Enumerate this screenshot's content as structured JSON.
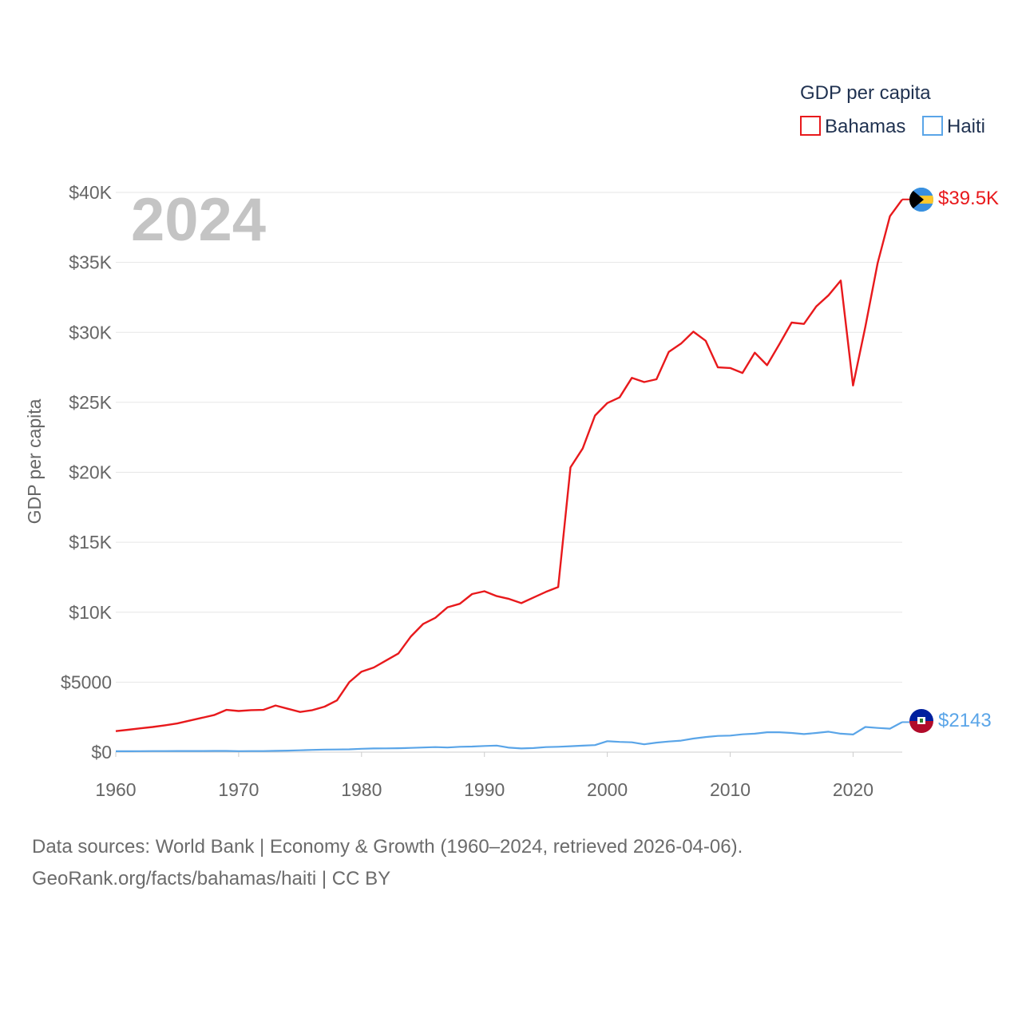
{
  "chart_data": {
    "type": "line",
    "title": "GDP per capita",
    "ylabel": "GDP per capita",
    "xlabel": "",
    "year_label": "2024",
    "xlim": [
      1960,
      2024
    ],
    "ylim": [
      0,
      40000
    ],
    "x_ticks": [
      "1960",
      "1970",
      "1980",
      "1990",
      "2000",
      "2010",
      "2020"
    ],
    "x_tick_values": [
      1960,
      1970,
      1980,
      1990,
      2000,
      2010,
      2020
    ],
    "y_ticks": [
      "$0",
      "$5000",
      "$10K",
      "$15K",
      "$20K",
      "$25K",
      "$30K",
      "$35K",
      "$40K"
    ],
    "y_tick_values": [
      0,
      5000,
      10000,
      15000,
      20000,
      25000,
      30000,
      35000,
      40000
    ],
    "legend_title": "GDP per capita",
    "legend_position": "top-right",
    "x": [
      1960,
      1961,
      1962,
      1963,
      1964,
      1965,
      1966,
      1967,
      1968,
      1969,
      1970,
      1971,
      1972,
      1973,
      1974,
      1975,
      1976,
      1977,
      1978,
      1979,
      1980,
      1981,
      1982,
      1983,
      1984,
      1985,
      1986,
      1987,
      1988,
      1989,
      1990,
      1991,
      1992,
      1993,
      1994,
      1995,
      1996,
      1997,
      1998,
      1999,
      2000,
      2001,
      2002,
      2003,
      2004,
      2005,
      2006,
      2007,
      2008,
      2009,
      2010,
      2011,
      2012,
      2013,
      2014,
      2015,
      2016,
      2017,
      2018,
      2019,
      2020,
      2021,
      2022,
      2023,
      2024
    ],
    "series": [
      {
        "name": "Bahamas",
        "color": "#e8191c",
        "end_label": "$39.5K",
        "flag": "bahamas-flag",
        "values": [
          1500,
          1600,
          1700,
          1800,
          1920,
          2050,
          2250,
          2450,
          2650,
          3020,
          2940,
          3000,
          3020,
          3330,
          3100,
          2870,
          3000,
          3250,
          3700,
          5000,
          5750,
          6050,
          6550,
          7050,
          8250,
          9150,
          9600,
          10350,
          10600,
          11300,
          11500,
          11150,
          10950,
          10650,
          11050,
          11450,
          11800,
          20350,
          21700,
          24050,
          24950,
          25350,
          26750,
          26450,
          26650,
          28600,
          29200,
          30050,
          29400,
          27500,
          27450,
          27100,
          28550,
          27650,
          29150,
          30700,
          30600,
          31850,
          32650,
          33700,
          26200,
          30400,
          34950,
          38300,
          39500
        ]
      },
      {
        "name": "Haiti",
        "color": "#5aa5e8",
        "end_label": "$2143",
        "flag": "haiti-flag",
        "values": [
          60,
          65,
          68,
          72,
          75,
          78,
          80,
          82,
          85,
          88,
          70,
          72,
          75,
          90,
          110,
          130,
          160,
          180,
          190,
          200,
          240,
          260,
          270,
          280,
          300,
          330,
          360,
          330,
          380,
          400,
          440,
          470,
          320,
          260,
          290,
          360,
          380,
          420,
          460,
          500,
          780,
          730,
          700,
          560,
          680,
          760,
          820,
          970,
          1080,
          1160,
          1180,
          1270,
          1320,
          1420,
          1420,
          1370,
          1290,
          1370,
          1460,
          1320,
          1260,
          1800,
          1730,
          1680,
          2143
        ]
      }
    ]
  },
  "footer": {
    "line1": "Data sources: World Bank | Economy & Growth (1960–2024, retrieved 2026-04-06).",
    "line2": "GeoRank.org/facts/bahamas/haiti | CC BY"
  }
}
